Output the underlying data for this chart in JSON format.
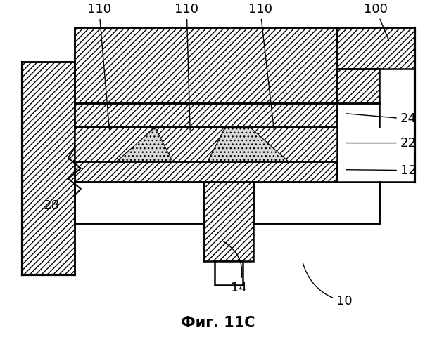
{
  "title": "Фиг. 11C",
  "title_fontsize": 15,
  "title_fontweight": "bold",
  "bg": "#ffffff",
  "lc": "#000000",
  "lw": 1.8,
  "fig_w": 6.21,
  "fig_h": 5.0,
  "dpi": 100
}
